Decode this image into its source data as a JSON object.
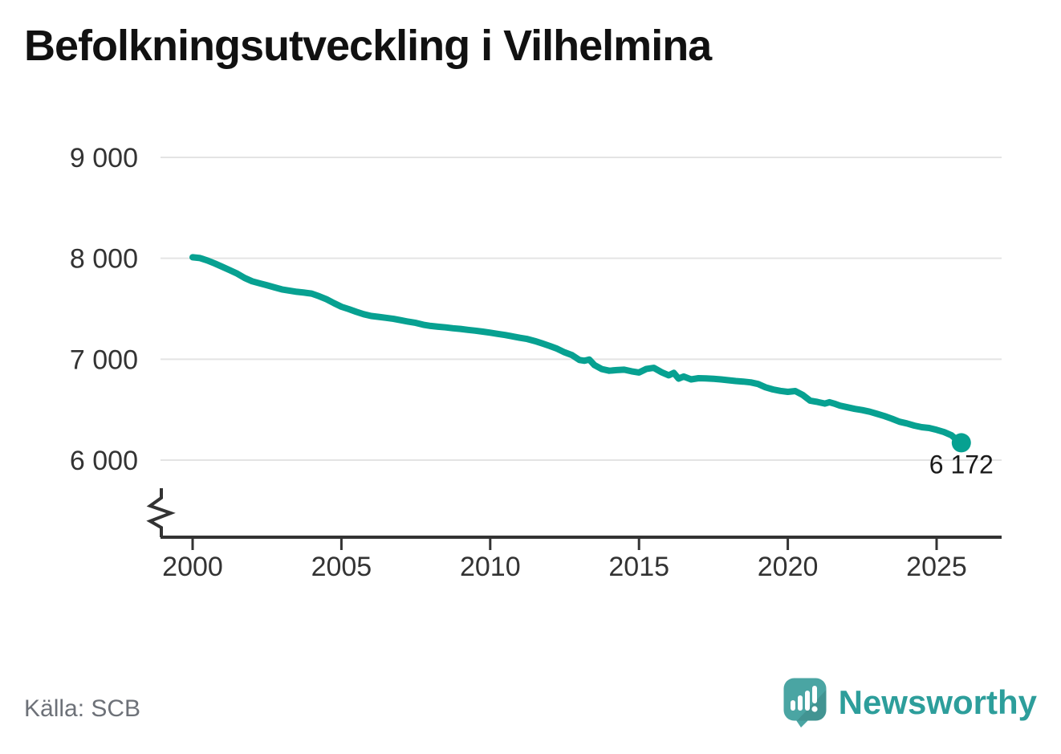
{
  "title": "Befolkningsutveckling i Vilhelmina",
  "source": "Källa: SCB",
  "branding": {
    "name": "Newsworthy",
    "logo_icon": "speech-bubble-bar-chart-icon",
    "wordmark_color": "#2d9e9b",
    "icon_color": "#4aa5a3"
  },
  "colors": {
    "line": "#07a191",
    "grid": "#e4e4e4",
    "axis": "#333333",
    "title_text": "#111111",
    "muted_text": "#6d7178"
  },
  "chart_data": {
    "type": "line",
    "title": "Befolkningsutveckling i Vilhelmina",
    "xlabel": "",
    "ylabel": "",
    "grid": "horizontal",
    "legend": "none",
    "y_axis_break": true,
    "xlim": [
      1998.9,
      2027.2
    ],
    "ylim": [
      6000,
      9000
    ],
    "y_ticks": [
      {
        "value": 9000,
        "label": "9 000"
      },
      {
        "value": 8000,
        "label": "8 000"
      },
      {
        "value": 7000,
        "label": "7 000"
      },
      {
        "value": 6000,
        "label": "6 000"
      }
    ],
    "x_ticks": [
      {
        "value": 2000,
        "label": "2000"
      },
      {
        "value": 2005,
        "label": "2005"
      },
      {
        "value": 2010,
        "label": "2010"
      },
      {
        "value": 2015,
        "label": "2015"
      },
      {
        "value": 2020,
        "label": "2020"
      },
      {
        "value": 2025,
        "label": "2025"
      }
    ],
    "series": [
      {
        "name": "Befolkning i Vilhelmina",
        "color": "#07a191",
        "points": [
          [
            2000.0,
            8010
          ],
          [
            2000.25,
            8002
          ],
          [
            2000.5,
            7978
          ],
          [
            2000.75,
            7948
          ],
          [
            2001.0,
            7915
          ],
          [
            2001.25,
            7882
          ],
          [
            2001.5,
            7848
          ],
          [
            2001.75,
            7805
          ],
          [
            2002.0,
            7772
          ],
          [
            2002.25,
            7752
          ],
          [
            2002.5,
            7732
          ],
          [
            2002.75,
            7712
          ],
          [
            2003.0,
            7692
          ],
          [
            2003.25,
            7680
          ],
          [
            2003.5,
            7668
          ],
          [
            2003.75,
            7660
          ],
          [
            2004.0,
            7650
          ],
          [
            2004.25,
            7624
          ],
          [
            2004.5,
            7594
          ],
          [
            2004.75,
            7556
          ],
          [
            2005.0,
            7520
          ],
          [
            2005.25,
            7496
          ],
          [
            2005.5,
            7470
          ],
          [
            2005.75,
            7446
          ],
          [
            2006.0,
            7428
          ],
          [
            2006.25,
            7420
          ],
          [
            2006.5,
            7410
          ],
          [
            2006.75,
            7400
          ],
          [
            2007.0,
            7386
          ],
          [
            2007.25,
            7372
          ],
          [
            2007.5,
            7360
          ],
          [
            2007.75,
            7342
          ],
          [
            2008.0,
            7330
          ],
          [
            2008.25,
            7322
          ],
          [
            2008.5,
            7315
          ],
          [
            2008.75,
            7307
          ],
          [
            2009.0,
            7300
          ],
          [
            2009.25,
            7291
          ],
          [
            2009.5,
            7283
          ],
          [
            2009.75,
            7273
          ],
          [
            2010.0,
            7263
          ],
          [
            2010.25,
            7251
          ],
          [
            2010.5,
            7240
          ],
          [
            2010.75,
            7226
          ],
          [
            2011.0,
            7212
          ],
          [
            2011.25,
            7200
          ],
          [
            2011.5,
            7180
          ],
          [
            2011.75,
            7156
          ],
          [
            2012.0,
            7131
          ],
          [
            2012.25,
            7104
          ],
          [
            2012.5,
            7068
          ],
          [
            2012.75,
            7040
          ],
          [
            2013.0,
            6992
          ],
          [
            2013.17,
            6984
          ],
          [
            2013.33,
            6996
          ],
          [
            2013.5,
            6942
          ],
          [
            2013.75,
            6902
          ],
          [
            2014.0,
            6886
          ],
          [
            2014.25,
            6892
          ],
          [
            2014.5,
            6896
          ],
          [
            2014.75,
            6880
          ],
          [
            2015.0,
            6868
          ],
          [
            2015.25,
            6904
          ],
          [
            2015.5,
            6914
          ],
          [
            2015.75,
            6872
          ],
          [
            2016.0,
            6840
          ],
          [
            2016.17,
            6864
          ],
          [
            2016.33,
            6808
          ],
          [
            2016.5,
            6828
          ],
          [
            2016.75,
            6800
          ],
          [
            2017.0,
            6812
          ],
          [
            2017.25,
            6810
          ],
          [
            2017.5,
            6806
          ],
          [
            2017.75,
            6800
          ],
          [
            2018.0,
            6792
          ],
          [
            2018.25,
            6784
          ],
          [
            2018.5,
            6778
          ],
          [
            2018.75,
            6770
          ],
          [
            2019.0,
            6754
          ],
          [
            2019.25,
            6722
          ],
          [
            2019.5,
            6700
          ],
          [
            2019.75,
            6686
          ],
          [
            2020.0,
            6676
          ],
          [
            2020.25,
            6684
          ],
          [
            2020.5,
            6646
          ],
          [
            2020.75,
            6590
          ],
          [
            2021.0,
            6576
          ],
          [
            2021.25,
            6560
          ],
          [
            2021.4,
            6574
          ],
          [
            2021.6,
            6556
          ],
          [
            2021.75,
            6540
          ],
          [
            2022.0,
            6524
          ],
          [
            2022.25,
            6508
          ],
          [
            2022.5,
            6496
          ],
          [
            2022.75,
            6480
          ],
          [
            2023.0,
            6458
          ],
          [
            2023.25,
            6436
          ],
          [
            2023.5,
            6410
          ],
          [
            2023.75,
            6380
          ],
          [
            2024.0,
            6364
          ],
          [
            2024.25,
            6342
          ],
          [
            2024.5,
            6326
          ],
          [
            2024.75,
            6318
          ],
          [
            2025.0,
            6300
          ],
          [
            2025.25,
            6278
          ],
          [
            2025.5,
            6246
          ],
          [
            2025.67,
            6204
          ],
          [
            2025.83,
            6172
          ]
        ]
      }
    ],
    "end_annotation": {
      "x": 2025.83,
      "value": 6172,
      "label": "6 172"
    }
  }
}
